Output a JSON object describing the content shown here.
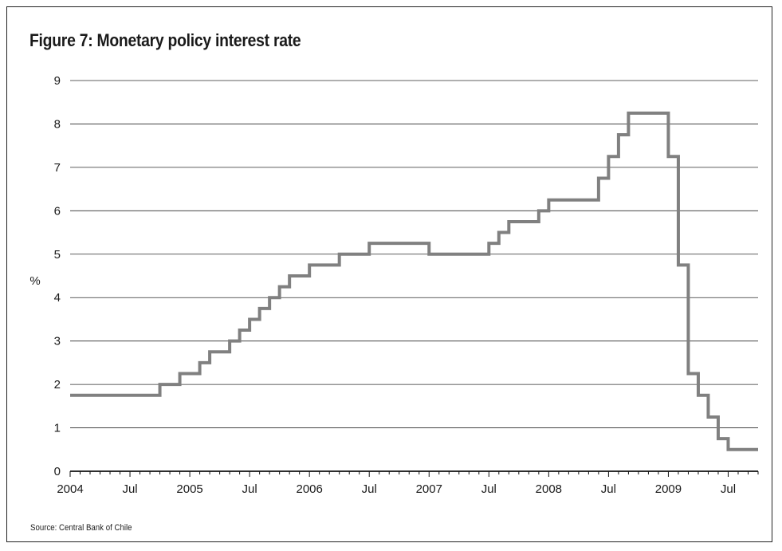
{
  "chart_data": {
    "type": "line",
    "title": "Figure 7: Monetary policy interest rate",
    "ylabel": "%",
    "xlabel": "",
    "ylim": [
      0,
      9
    ],
    "yticks": [
      0,
      1,
      2,
      3,
      4,
      5,
      6,
      7,
      8,
      9
    ],
    "grid": true,
    "xlim": [
      "2004-01",
      "2009-10"
    ],
    "xtick_labels": [
      {
        "month": "2004-01",
        "label": "2004"
      },
      {
        "month": "2004-07",
        "label": "Jul"
      },
      {
        "month": "2005-01",
        "label": "2005"
      },
      {
        "month": "2005-07",
        "label": "Jul"
      },
      {
        "month": "2006-01",
        "label": "2006"
      },
      {
        "month": "2006-07",
        "label": "Jul"
      },
      {
        "month": "2007-01",
        "label": "2007"
      },
      {
        "month": "2007-07",
        "label": "Jul"
      },
      {
        "month": "2008-01",
        "label": "2008"
      },
      {
        "month": "2008-07",
        "label": "Jul"
      },
      {
        "month": "2009-01",
        "label": "2009"
      },
      {
        "month": "2009-07",
        "label": "Jul"
      }
    ],
    "series": [
      {
        "name": "",
        "color": "#808080",
        "points": [
          {
            "date": "2004-01",
            "value": 1.75
          },
          {
            "date": "2004-10",
            "value": 2.0
          },
          {
            "date": "2004-11",
            "value": 2.0
          },
          {
            "date": "2004-12",
            "value": 2.25
          },
          {
            "date": "2005-01",
            "value": 2.25
          },
          {
            "date": "2005-02",
            "value": 2.5
          },
          {
            "date": "2005-03",
            "value": 2.75
          },
          {
            "date": "2005-04",
            "value": 2.75
          },
          {
            "date": "2005-05",
            "value": 3.0
          },
          {
            "date": "2005-06",
            "value": 3.25
          },
          {
            "date": "2005-07",
            "value": 3.5
          },
          {
            "date": "2005-08",
            "value": 3.75
          },
          {
            "date": "2005-09",
            "value": 4.0
          },
          {
            "date": "2005-10",
            "value": 4.25
          },
          {
            "date": "2005-11",
            "value": 4.5
          },
          {
            "date": "2005-12",
            "value": 4.5
          },
          {
            "date": "2006-01",
            "value": 4.75
          },
          {
            "date": "2006-04",
            "value": 5.0
          },
          {
            "date": "2006-07",
            "value": 5.25
          },
          {
            "date": "2007-01",
            "value": 5.0
          },
          {
            "date": "2007-07",
            "value": 5.25
          },
          {
            "date": "2007-08",
            "value": 5.5
          },
          {
            "date": "2007-09",
            "value": 5.75
          },
          {
            "date": "2007-12",
            "value": 6.0
          },
          {
            "date": "2008-01",
            "value": 6.25
          },
          {
            "date": "2008-06",
            "value": 6.75
          },
          {
            "date": "2008-07",
            "value": 7.25
          },
          {
            "date": "2008-08",
            "value": 7.75
          },
          {
            "date": "2008-09",
            "value": 8.25
          },
          {
            "date": "2009-01",
            "value": 7.25
          },
          {
            "date": "2009-02",
            "value": 4.75
          },
          {
            "date": "2009-03",
            "value": 2.25
          },
          {
            "date": "2009-04",
            "value": 1.75
          },
          {
            "date": "2009-05",
            "value": 1.25
          },
          {
            "date": "2009-06",
            "value": 0.75
          },
          {
            "date": "2009-07",
            "value": 0.5
          },
          {
            "date": "2009-09",
            "value": 0.5
          }
        ]
      }
    ]
  },
  "source": "Source: Central Bank of Chile"
}
